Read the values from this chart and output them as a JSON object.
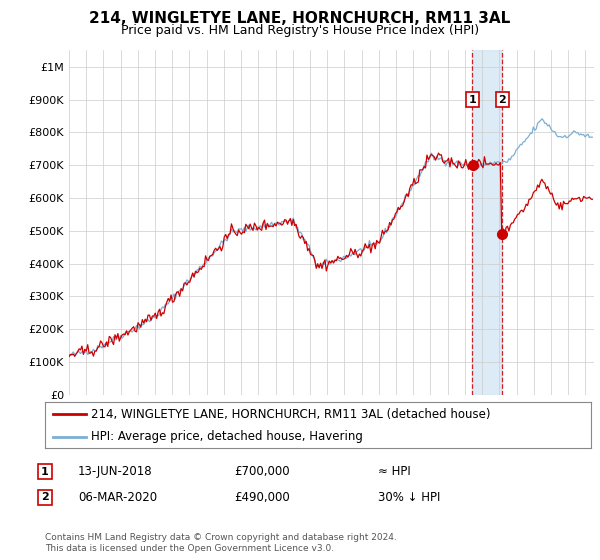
{
  "title": "214, WINGLETYE LANE, HORNCHURCH, RM11 3AL",
  "subtitle": "Price paid vs. HM Land Registry's House Price Index (HPI)",
  "ylim": [
    0,
    1050000
  ],
  "yticks": [
    0,
    100000,
    200000,
    300000,
    400000,
    500000,
    600000,
    700000,
    800000,
    900000,
    1000000
  ],
  "ytick_labels": [
    "£0",
    "£100K",
    "£200K",
    "£300K",
    "£400K",
    "£500K",
    "£600K",
    "£700K",
    "£800K",
    "£900K",
    "£1M"
  ],
  "hpi_color": "#7bafd4",
  "price_color": "#cc0000",
  "marker_color": "#cc0000",
  "vline_color": "#cc0000",
  "shade_color": "#d6e8f5",
  "transaction1_date": 2018.44,
  "transaction1_price": 700000,
  "transaction2_date": 2020.17,
  "transaction2_price": 490000,
  "legend_label_price": "214, WINGLETYE LANE, HORNCHURCH, RM11 3AL (detached house)",
  "legend_label_hpi": "HPI: Average price, detached house, Havering",
  "ann1_text": "13-JUN-2018",
  "ann1_price_text": "£700,000",
  "ann1_rel": "≈ HPI",
  "ann2_text": "06-MAR-2020",
  "ann2_price_text": "£490,000",
  "ann2_rel": "30% ↓ HPI",
  "footer": "Contains HM Land Registry data © Crown copyright and database right 2024.\nThis data is licensed under the Open Government Licence v3.0.",
  "background_color": "#ffffff",
  "grid_color": "#cccccc",
  "title_fontsize": 11,
  "subtitle_fontsize": 9,
  "tick_fontsize": 8,
  "legend_fontsize": 8.5,
  "ann_fontsize": 8.5,
  "footer_fontsize": 6.5
}
